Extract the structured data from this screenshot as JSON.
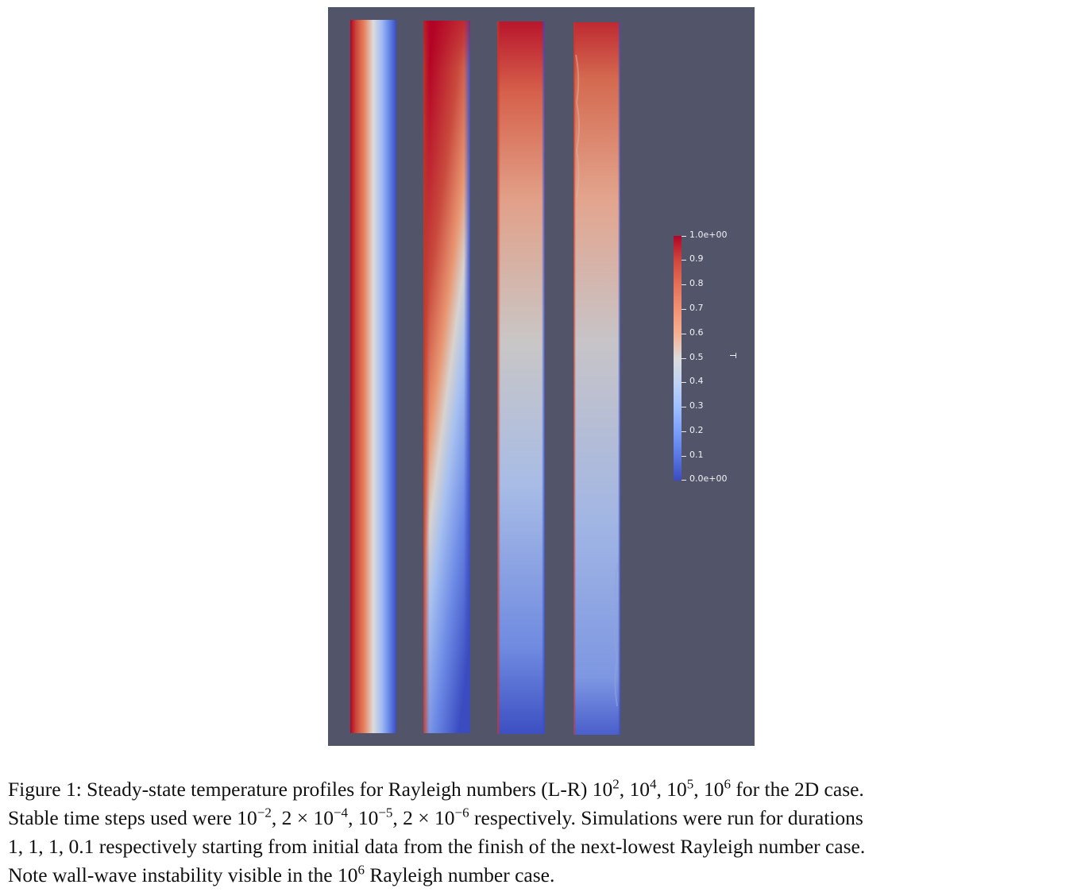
{
  "figure": {
    "colorbar": {
      "title": "T",
      "tick_labels": [
        "1.0e+00",
        "0.9",
        "0.8",
        "0.7",
        "0.6",
        "0.5",
        "0.4",
        "0.3",
        "0.2",
        "0.1",
        "0.0e+00"
      ],
      "colormap": [
        "#b40426",
        "#dddcdc",
        "#3b4cc0"
      ]
    },
    "panel_background": "#525469"
  },
  "caption": {
    "line1": {
      "before": "Figure 1: Steady-state temperature profiles for Rayleigh numbers (L-R) 10",
      "sup1": "2",
      "mid1": ", 10",
      "sup2": "4",
      "mid2": ", 10",
      "sup3": "5",
      "mid3": ", 10",
      "sup4": "6",
      "after": " for the 2D case."
    },
    "line2": {
      "before": "Stable time steps used were 10",
      "sup1": "−2",
      "mid1": ", 2 × 10",
      "sup2": "−4",
      "mid2": ", 10",
      "sup3": "−5",
      "mid3": ", 2 × 10",
      "sup4": "−6",
      "after": " respectively. Simulations were run for durations"
    },
    "line3": "1, 1, 1, 0.1 respectively starting from initial data from the finish of the next-lowest Rayleigh number case.",
    "line4": {
      "before": "Note wall-wave instability visible in the 10",
      "sup1": "6",
      "after": " Rayleigh number case."
    }
  }
}
